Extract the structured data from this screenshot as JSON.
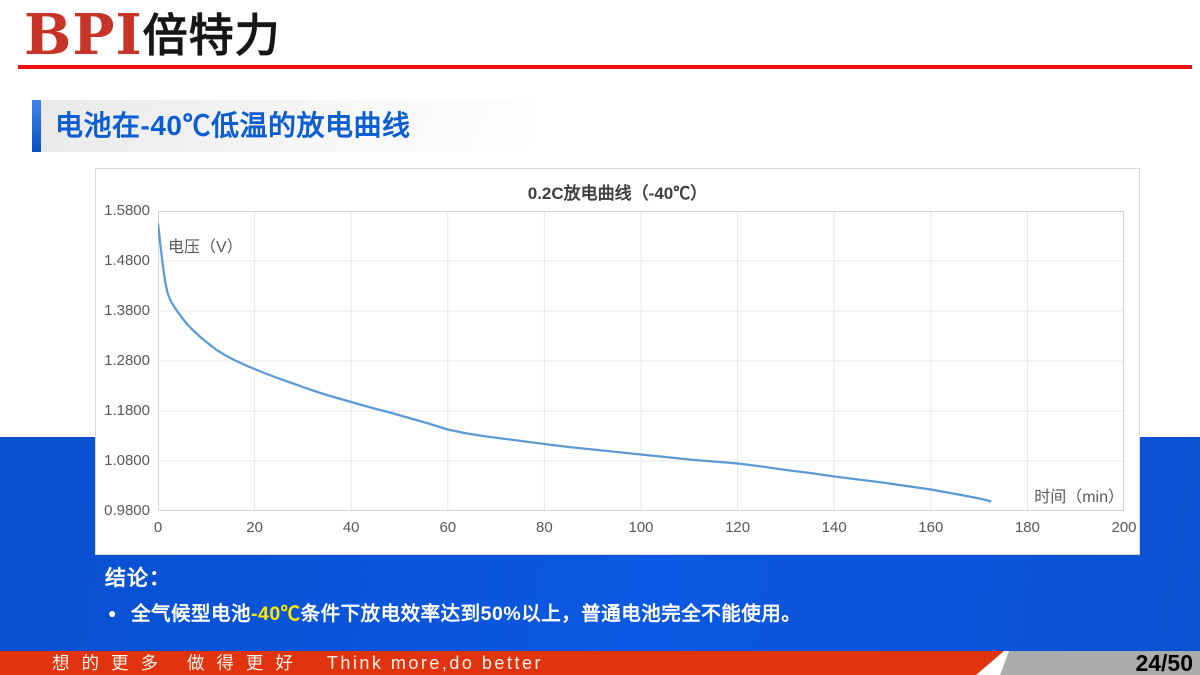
{
  "logo": {
    "text_en": "BPI",
    "text_cn": "倍特力"
  },
  "title": {
    "text": "电池在-40℃低温的放电曲线"
  },
  "conclusion": {
    "heading": "结论：",
    "bullet": {
      "prefix": "全气候型电池",
      "highlight": "-40℃",
      "suffix": "条件下放电效率达到50%以上，普通电池完全不能使用。"
    }
  },
  "footer": {
    "slogan_cn": "想的更多 做得更好",
    "slogan_en": "Think more,do better",
    "page_number": "24/50"
  },
  "chart_data": {
    "type": "line",
    "title": "0.2C放电曲线（-40℃）",
    "xlabel": "时间（min）",
    "ylabel": "电压（V）",
    "xlim": [
      0,
      200
    ],
    "ylim": [
      0.98,
      1.58
    ],
    "x_ticks": [
      0,
      20,
      40,
      60,
      80,
      100,
      120,
      140,
      160,
      180,
      200
    ],
    "y_tick_labels": [
      "1.5800",
      "1.4800",
      "1.3800",
      "1.2800",
      "1.1800",
      "1.0800",
      "0.9800"
    ],
    "grid": true,
    "legend_position": "none",
    "line_color": "#5B9BD5",
    "series": [
      {
        "points": [
          [
            0,
            1.555
          ],
          [
            0.5,
            1.512
          ],
          [
            1,
            1.472
          ],
          [
            1.5,
            1.438
          ],
          [
            2,
            1.415
          ],
          [
            2.5,
            1.403
          ],
          [
            3,
            1.394
          ],
          [
            4,
            1.379
          ],
          [
            5,
            1.366
          ],
          [
            6,
            1.354
          ],
          [
            7,
            1.344
          ],
          [
            8,
            1.335
          ],
          [
            9,
            1.326
          ],
          [
            10,
            1.318
          ],
          [
            12,
            1.303
          ],
          [
            14,
            1.291
          ],
          [
            16,
            1.281
          ],
          [
            18,
            1.272
          ],
          [
            20,
            1.264
          ],
          [
            22,
            1.256
          ],
          [
            25,
            1.245
          ],
          [
            28,
            1.235
          ],
          [
            30,
            1.228
          ],
          [
            33,
            1.218
          ],
          [
            36,
            1.209
          ],
          [
            40,
            1.198
          ],
          [
            44,
            1.187
          ],
          [
            48,
            1.177
          ],
          [
            52,
            1.166
          ],
          [
            56,
            1.155
          ],
          [
            60,
            1.143
          ],
          [
            64,
            1.135
          ],
          [
            68,
            1.129
          ],
          [
            72,
            1.124
          ],
          [
            76,
            1.119
          ],
          [
            80,
            1.114
          ],
          [
            85,
            1.108
          ],
          [
            90,
            1.103
          ],
          [
            95,
            1.098
          ],
          [
            100,
            1.093
          ],
          [
            105,
            1.088
          ],
          [
            110,
            1.083
          ],
          [
            115,
            1.079
          ],
          [
            120,
            1.075
          ],
          [
            125,
            1.069
          ],
          [
            130,
            1.062
          ],
          [
            135,
            1.056
          ],
          [
            140,
            1.049
          ],
          [
            145,
            1.043
          ],
          [
            150,
            1.037
          ],
          [
            155,
            1.03
          ],
          [
            160,
            1.023
          ],
          [
            164,
            1.016
          ],
          [
            168,
            1.009
          ],
          [
            171,
            1.003
          ],
          [
            172.5,
            0.999
          ]
        ]
      }
    ]
  },
  "colors": {
    "accent_blue": "#0B5ED2",
    "band_blue": "#0C58E2",
    "footer_red": "#E2330F",
    "logo_red": "#C63428",
    "rule_red": "#F10F0F",
    "highlight_yellow": "#FFE600",
    "corner_gray": "#ABABAB",
    "curve_blue": "#5B9BD5"
  }
}
